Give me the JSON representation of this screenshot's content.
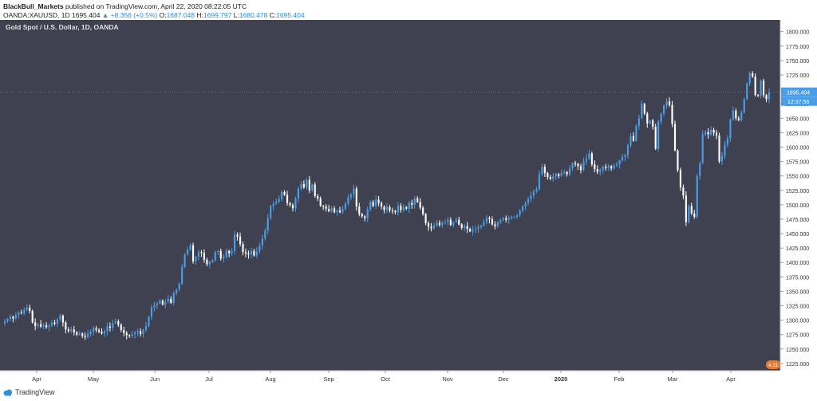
{
  "header": {
    "publisher": "BlackBull_Markets",
    "published_text": "published on TradingView.com, April 22, 2020 08:22:05 UTC",
    "symbol": "OANDA:XAUUSD, 1D",
    "last": "1695.404",
    "change_arrow": "▲",
    "change": "+8.356 (+0.5%)",
    "o_label": "O:",
    "o_value": "1687.048",
    "h_label": "H:",
    "h_value": "1699.797",
    "l_label": "L:",
    "l_value": "1680.478",
    "c_label": "C:",
    "c_value": "1695.404"
  },
  "footer": {
    "brand": "TradingView"
  },
  "chart_data": {
    "type": "candlestick",
    "title": "Gold Spot / U.S. Dollar, 1D, OANDA",
    "price_label": "1695.404",
    "countdown_label": "12:37:56",
    "badge_text": "4.11",
    "y_ticks": [
      "1800.000",
      "1775.000",
      "1750.000",
      "1725.000",
      "1700.000",
      "1675.000",
      "1650.000",
      "1625.000",
      "1600.000",
      "1575.000",
      "1550.000",
      "1525.000",
      "1500.000",
      "1475.000",
      "1450.000",
      "1425.000",
      "1400.000",
      "1375.000",
      "1350.000",
      "1325.000",
      "1300.000",
      "1275.000",
      "1250.000",
      "1225.000"
    ],
    "x_ticks": [
      "Apr",
      "May",
      "Jun",
      "Jul",
      "Aug",
      "Sep",
      "Oct",
      "Nov",
      "Dec",
      "2020",
      "Feb",
      "Mar",
      "Apr"
    ],
    "ylim": [
      1218,
      1812
    ],
    "grid": false,
    "colors": {
      "background": "#3f4150",
      "up": "#4a9ee6",
      "down": "#ffffff",
      "axis_bg": "#ffffff",
      "axis_text": "#333333",
      "badge": "#e07b39"
    },
    "closes": [
      1298,
      1302,
      1306,
      1303,
      1309,
      1313,
      1312,
      1318,
      1322,
      1316,
      1296,
      1290,
      1293,
      1289,
      1291,
      1288,
      1291,
      1296,
      1294,
      1301,
      1308,
      1296,
      1284,
      1281,
      1284,
      1279,
      1275,
      1277,
      1273,
      1271,
      1276,
      1280,
      1286,
      1283,
      1280,
      1277,
      1281,
      1289,
      1287,
      1295,
      1298,
      1292,
      1283,
      1278,
      1274,
      1273,
      1276,
      1279,
      1281,
      1276,
      1283,
      1290,
      1306,
      1322,
      1326,
      1329,
      1334,
      1327,
      1332,
      1337,
      1330,
      1347,
      1353,
      1363,
      1392,
      1414,
      1422,
      1430,
      1402,
      1410,
      1418,
      1417,
      1405,
      1397,
      1401,
      1404,
      1418,
      1420,
      1407,
      1410,
      1420,
      1416,
      1420,
      1448,
      1445,
      1432,
      1418,
      1416,
      1414,
      1420,
      1412,
      1419,
      1429,
      1442,
      1455,
      1477,
      1498,
      1502,
      1505,
      1510,
      1522,
      1517,
      1503,
      1500,
      1494,
      1511,
      1528,
      1536,
      1530,
      1543,
      1525,
      1535,
      1515,
      1511,
      1498,
      1497,
      1493,
      1489,
      1494,
      1487,
      1490,
      1487,
      1493,
      1502,
      1513,
      1518,
      1528,
      1497,
      1484,
      1480,
      1477,
      1492,
      1505,
      1498,
      1509,
      1503,
      1497,
      1491,
      1496,
      1490,
      1489,
      1487,
      1498,
      1491,
      1496,
      1493,
      1503,
      1500,
      1511,
      1505,
      1495,
      1484,
      1468,
      1462,
      1459,
      1464,
      1469,
      1465,
      1469,
      1470,
      1474,
      1465,
      1470,
      1474,
      1466,
      1460,
      1463,
      1458,
      1454,
      1457,
      1458,
      1461,
      1464,
      1470,
      1477,
      1475,
      1466,
      1463,
      1470,
      1474,
      1477,
      1474,
      1477,
      1479,
      1479,
      1482,
      1490,
      1497,
      1503,
      1510,
      1516,
      1523,
      1527,
      1553,
      1566,
      1555,
      1548,
      1545,
      1549,
      1553,
      1550,
      1555,
      1557,
      1553,
      1563,
      1572,
      1571,
      1567,
      1560,
      1575,
      1580,
      1589,
      1570,
      1562,
      1557,
      1560,
      1566,
      1564,
      1567,
      1563,
      1568,
      1570,
      1577,
      1583,
      1586,
      1603,
      1619,
      1611,
      1637,
      1650,
      1675,
      1658,
      1641,
      1646,
      1635,
      1597,
      1644,
      1658,
      1672,
      1679,
      1673,
      1640,
      1594,
      1560,
      1530,
      1516,
      1470,
      1498,
      1485,
      1479,
      1550,
      1572,
      1622,
      1626,
      1622,
      1630,
      1625,
      1620,
      1575,
      1585,
      1604,
      1615,
      1648,
      1663,
      1650,
      1647,
      1660,
      1683,
      1710,
      1728,
      1722,
      1690,
      1689,
      1715,
      1690,
      1683,
      1695
    ]
  }
}
